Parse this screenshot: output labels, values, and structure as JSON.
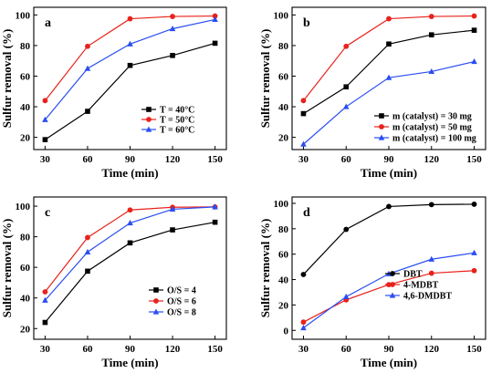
{
  "chart_data": [
    {
      "type": "line",
      "panel_label": "a",
      "xlabel": "Time (min)",
      "ylabel": "Sulfur removal (%)",
      "x": [
        30,
        60,
        90,
        120,
        150
      ],
      "xticks": [
        "30",
        "60",
        "90",
        "120",
        "150"
      ],
      "xlim": [
        22,
        158
      ],
      "ylim": [
        12,
        105
      ],
      "yticks": [
        20,
        40,
        60,
        80,
        100
      ],
      "legend_position": "bottom-right",
      "series": [
        {
          "name": "T = 40°C",
          "color": "#000000",
          "marker": "square",
          "values": [
            18.5,
            37,
            67,
            73.5,
            81.5
          ]
        },
        {
          "name": "T = 50°C",
          "color": "#e8221b",
          "marker": "circle",
          "values": [
            44,
            79.5,
            97.5,
            99,
            99.3
          ]
        },
        {
          "name": "T = 60°C",
          "color": "#2a4ef0",
          "marker": "triangle",
          "values": [
            31.5,
            65,
            81,
            91,
            97
          ]
        }
      ]
    },
    {
      "type": "line",
      "panel_label": "b",
      "xlabel": "Time (min)",
      "ylabel": "Sulfur removal (%)",
      "x": [
        30,
        60,
        90,
        120,
        150
      ],
      "xticks": [
        "30",
        "60",
        "90",
        "120",
        "150"
      ],
      "xlim": [
        22,
        158
      ],
      "ylim": [
        12,
        105
      ],
      "yticks": [
        20,
        40,
        60,
        80,
        100
      ],
      "legend_position": "bottom-right",
      "series": [
        {
          "name": "m (catalyst) = 30 mg",
          "color": "#000000",
          "marker": "square",
          "values": [
            35.5,
            53,
            81,
            87,
            90
          ]
        },
        {
          "name": "m (catalyst) = 50 mg",
          "color": "#e8221b",
          "marker": "circle",
          "values": [
            44,
            79.5,
            97.5,
            99,
            99.3
          ]
        },
        {
          "name": "m (catalyst) = 100 mg",
          "color": "#2a4ef0",
          "marker": "triangle",
          "values": [
            15.5,
            40,
            59,
            63,
            69.5
          ]
        }
      ]
    },
    {
      "type": "line",
      "panel_label": "c",
      "xlabel": "Time (min)",
      "ylabel": "Sulfur removal (%)",
      "x": [
        30,
        60,
        90,
        120,
        150
      ],
      "xticks": [
        "30",
        "60",
        "90",
        "120",
        "150"
      ],
      "xlim": [
        22,
        158
      ],
      "ylim": [
        13,
        106
      ],
      "yticks": [
        20,
        40,
        60,
        80,
        100
      ],
      "legend_position": "bottom-right",
      "series": [
        {
          "name": "O/S = 4",
          "color": "#000000",
          "marker": "square",
          "values": [
            24,
            57.5,
            76,
            84.5,
            89.5
          ]
        },
        {
          "name": "O/S = 6",
          "color": "#e8221b",
          "marker": "circle",
          "values": [
            44,
            79.5,
            97.5,
            99.3,
            99.5
          ]
        },
        {
          "name": "O/S = 8",
          "color": "#2a4ef0",
          "marker": "triangle",
          "values": [
            38.5,
            70,
            89,
            98,
            99.5
          ]
        }
      ]
    },
    {
      "type": "line",
      "panel_label": "d",
      "xlabel": "Time (min)",
      "ylabel": "Sulfur removal (%)",
      "x": [
        30,
        60,
        90,
        120,
        150
      ],
      "xticks": [
        "30",
        "60",
        "90",
        "120",
        "150"
      ],
      "xlim": [
        22,
        158
      ],
      "ylim": [
        -7,
        105
      ],
      "yticks": [
        0,
        20,
        40,
        60,
        80,
        100
      ],
      "legend_position": "center-right",
      "series": [
        {
          "name": "DBT",
          "color": "#000000",
          "marker": "circle",
          "values": [
            44,
            79.5,
            97.5,
            99,
            99.3
          ]
        },
        {
          "name": "4-MDBT",
          "color": "#e8221b",
          "marker": "circle",
          "values": [
            6.5,
            24,
            36,
            45,
            47
          ]
        },
        {
          "name": "4,6-DMDBT",
          "color": "#2a4ef0",
          "marker": "triangle",
          "values": [
            2,
            26.5,
            44.5,
            56,
            61
          ]
        }
      ]
    }
  ]
}
